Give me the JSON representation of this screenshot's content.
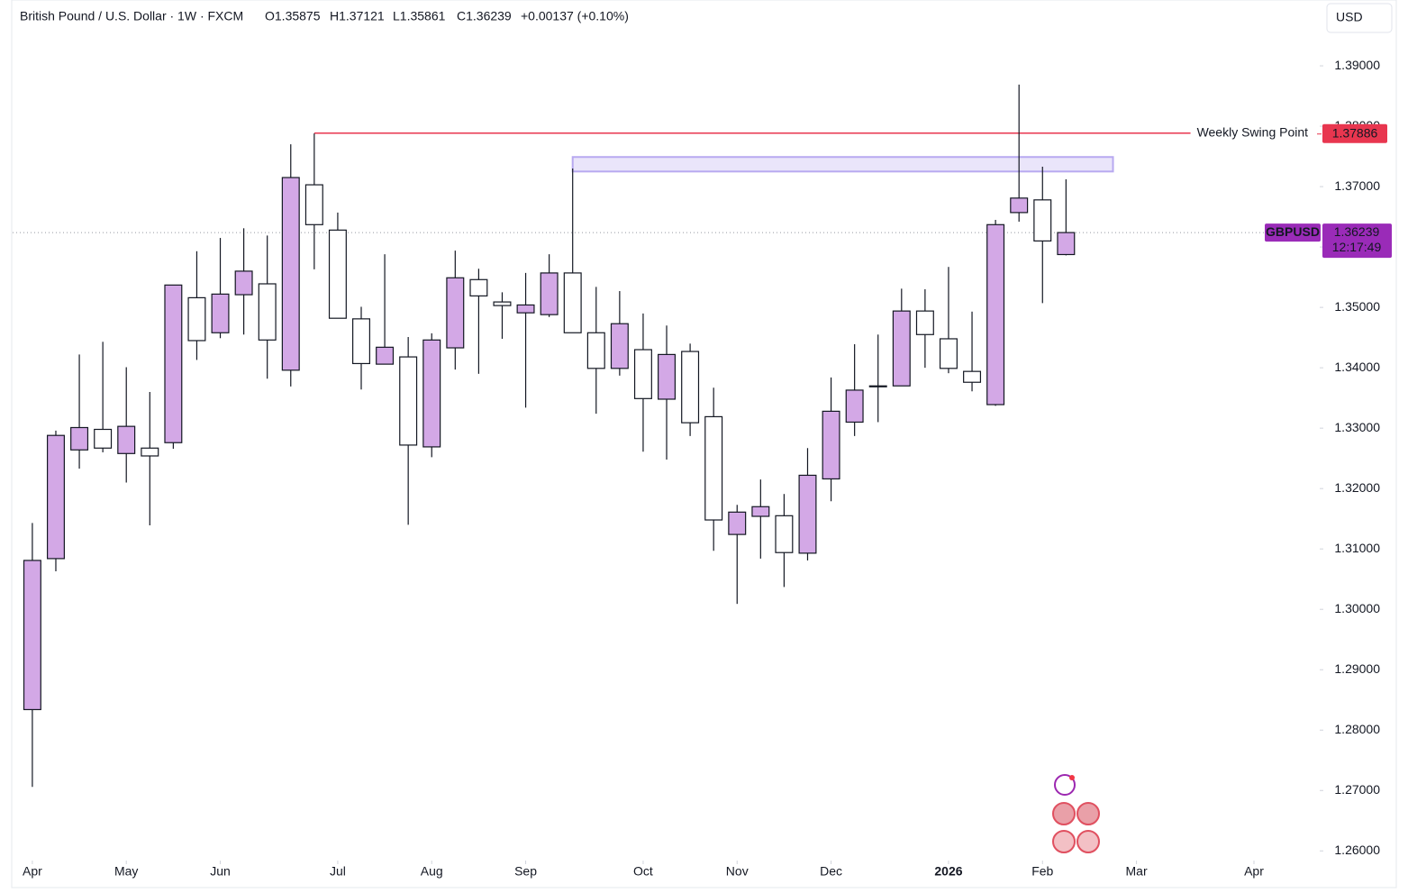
{
  "chart_data": {
    "type": "candlestick",
    "title": "British Pound / U.S. Dollar · 1W · FXCM",
    "ohlc_texts": [
      "O1.35875",
      "H1.37121",
      "L1.35861",
      "C1.36239",
      "+0.00137 (+0.10%)"
    ],
    "currency": "USD",
    "up_color": "#d3a8e6",
    "down_color": "#ffffff",
    "open": [
      1.2834,
      1.3084,
      1.3264,
      1.3298,
      1.3258,
      1.3267,
      1.3276,
      1.3516,
      1.3458,
      1.3521,
      1.3539,
      1.3396,
      1.3703,
      1.3628,
      1.3481,
      1.3406,
      1.3418,
      1.3269,
      1.3433,
      1.3546,
      1.3509,
      1.3491,
      1.3488,
      1.3557,
      1.3458,
      1.3399,
      1.343,
      1.3348,
      1.3427,
      1.3319,
      1.3124,
      1.3154,
      1.3155,
      1.3093,
      1.3216,
      1.331,
      1.337,
      1.337,
      1.3494,
      1.3448,
      1.3394,
      1.3339,
      1.3657,
      1.3678,
      1.35875
    ],
    "high": [
      1.3143,
      1.3296,
      1.3422,
      1.3443,
      1.3401,
      1.336,
      1.3537,
      1.3593,
      1.3615,
      1.3631,
      1.3619,
      1.377,
      1.3788,
      1.3657,
      1.3501,
      1.3588,
      1.3451,
      1.3457,
      1.3594,
      1.3564,
      1.3525,
      1.3557,
      1.3588,
      1.373,
      1.3534,
      1.3527,
      1.349,
      1.347,
      1.344,
      1.3367,
      1.3173,
      1.3215,
      1.3191,
      1.3267,
      1.3384,
      1.3439,
      1.3455,
      1.3531,
      1.353,
      1.3567,
      1.3493,
      1.3645,
      1.3869,
      1.3733,
      1.37121
    ],
    "low": [
      1.2706,
      1.3063,
      1.3233,
      1.326,
      1.321,
      1.3139,
      1.3266,
      1.3413,
      1.3449,
      1.3455,
      1.3382,
      1.3369,
      1.3563,
      1.3482,
      1.3364,
      1.3406,
      1.314,
      1.3252,
      1.3397,
      1.339,
      1.3448,
      1.3334,
      1.3484,
      1.3458,
      1.3324,
      1.3387,
      1.3261,
      1.3248,
      1.3287,
      1.3097,
      1.3009,
      1.3084,
      1.3037,
      1.3081,
      1.3179,
      1.3287,
      1.331,
      1.337,
      1.34,
      1.3391,
      1.3361,
      1.3337,
      1.3642,
      1.3507,
      1.35861
    ],
    "close": [
      1.3081,
      1.3288,
      1.3301,
      1.3267,
      1.3303,
      1.3254,
      1.3537,
      1.3445,
      1.3522,
      1.356,
      1.3446,
      1.3715,
      1.3637,
      1.3482,
      1.3407,
      1.3434,
      1.3272,
      1.3446,
      1.3549,
      1.3519,
      1.3503,
      1.3504,
      1.3557,
      1.3458,
      1.3399,
      1.3473,
      1.3349,
      1.3422,
      1.3309,
      1.3148,
      1.3161,
      1.317,
      1.3094,
      1.3222,
      1.3328,
      1.3363,
      1.337,
      1.3494,
      1.3455,
      1.3399,
      1.3376,
      1.3637,
      1.3681,
      1.361,
      1.36239
    ],
    "xlim": [
      -0.84,
      54.8
    ],
    "xticks": [
      {
        "value": 0,
        "label": "Apr"
      },
      {
        "value": 4,
        "label": "May"
      },
      {
        "value": 8,
        "label": "Jun"
      },
      {
        "value": 13,
        "label": "Jul"
      },
      {
        "value": 17,
        "label": "Aug"
      },
      {
        "value": 21,
        "label": "Sep"
      },
      {
        "value": 26,
        "label": "Oct"
      },
      {
        "value": 30,
        "label": "Nov"
      },
      {
        "value": 34,
        "label": "Dec"
      },
      {
        "value": 39,
        "label": "2026"
      },
      {
        "value": 43,
        "label": "Feb"
      },
      {
        "value": 47,
        "label": "Mar"
      },
      {
        "value": 52,
        "label": "Apr"
      }
    ],
    "ylim": [
      1.2584,
      1.4009
    ],
    "yticks": [
      {
        "value": 1.26,
        "label": "1.26000"
      },
      {
        "value": 1.27,
        "label": "1.27000"
      },
      {
        "value": 1.28,
        "label": "1.28000"
      },
      {
        "value": 1.29,
        "label": "1.29000"
      },
      {
        "value": 1.3,
        "label": "1.30000"
      },
      {
        "value": 1.31,
        "label": "1.31000"
      },
      {
        "value": 1.32,
        "label": "1.32000"
      },
      {
        "value": 1.33,
        "label": "1.33000"
      },
      {
        "value": 1.34,
        "label": "1.34000"
      },
      {
        "value": 1.35,
        "label": "1.35000"
      },
      {
        "value": 1.36,
        "label": "1.36000"
      },
      {
        "value": 1.37,
        "label": "1.37000"
      },
      {
        "value": 1.38,
        "label": "1.38000"
      },
      {
        "value": 1.39,
        "label": "1.39000"
      }
    ],
    "swing_line": {
      "name": "Weekly Swing Point",
      "value": 1.37886,
      "label": "1.37886",
      "start": 12,
      "end": 49.3,
      "color": "#e8364f"
    },
    "zone": {
      "top": 1.3749,
      "bottom": 1.3725,
      "start": 23,
      "end": 46,
      "color": "#b8a9f0"
    },
    "last_price": {
      "symbol": "GBPUSD",
      "value": 1.36239,
      "label": "1.36239",
      "countdown": "12:17:49",
      "color": "#9a2bb8"
    }
  }
}
